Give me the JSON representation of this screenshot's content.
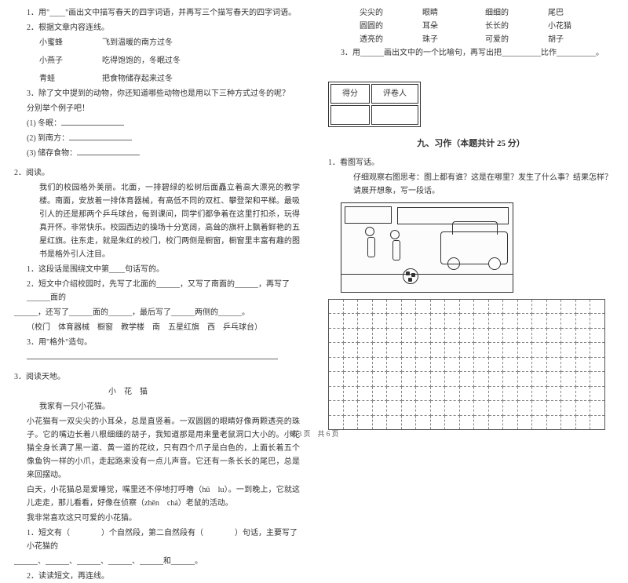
{
  "left": {
    "q1_1": "1．用\"____\"画出文中描写春天的四字词语，并再写三个描写春天的四字词语。",
    "q1_2": "2．根据文章内容连线。",
    "pairs": [
      [
        "小蜜蜂",
        "飞到温暖的南方过冬"
      ],
      [
        "小燕子",
        "吃得饱饱的，冬眠过冬"
      ],
      [
        "青蛙",
        "把食物储存起来过冬"
      ]
    ],
    "q1_3": "3．除了文中提到的动物，你还知道哪些动物也是用以下三种方式过冬的呢？",
    "q1_3a": "分别举个例子吧！",
    "sub": [
      "(1) 冬眠：",
      "(2) 到南方：",
      "(3) 储存食物："
    ],
    "q2": "2．阅读。",
    "p2_1": "我们的校园格外美丽。北面，一排碧绿的松树后面矗立着高大漂亮的教学楼。南面，安放着一排体育器械，有高低不同的双杠、攀登架和平梯。最吸引人的还是那两个乒乓球台，每到课间，同学们都争着在这里打扣杀，玩得真开怀。非常快乐。校园西边的操场十分宽阔，高耸的旗杆上飘着鲜艳的五星红旗。往东走，就是朱红的校门，校门两侧是橱窗，橱窗里丰富有趣的图书是格外引人注目。",
    "p2_q1": "1．这段话是围绕文中第____句话写的。",
    "p2_q2a": "2．短文中介绍校园时，先写了北面的______，又写了南面的______，再写了______面的",
    "p2_q2b": "______，还写了______面的______，最后写了______两侧的______。",
    "p2_opts": "（校门　体育器械　橱窗　教学楼　南　五星红旗　西　乒乓球台）",
    "p2_q3": "3．用\"格外\"造句。",
    "q3": "3．阅读天地。",
    "title3": "小　花　猫",
    "p3_0": "我家有一只小花猫。",
    "p3_1": "小花猫有一双尖尖的小耳朵，总是直竖着。一双圆圆的眼睛好像两颗透亮的珠子。它的嘴边长着八根细细的胡子，我知道那是用来量老鼠洞口大小的。小花猫全身长满了黑一道、黄一道的花纹，只有四个爪子是白色的，上面长着五个像鱼钩一样的小爪，走起路来没有一点儿声音。它还有一条长长的尾巴，总是来回摆动。",
    "p3_2": "白天，小花猫总是爱睡觉，嘴里还不停地打呼噜（hū　lu）。一到晚上，它就这儿走走，那儿看看，好像在侦察（zhēn　chá）老鼠的活动。",
    "p3_3": "我非常喜欢这只可爱的小花猫。",
    "p3_q1a": "1．短文有（　　　　）个自然段，第二自然段有（　　　　）句话，主要写了小花猫的",
    "p3_q1b": "______、______、______、______、______和______。",
    "p3_q2": "2．读读短文，再连线。"
  },
  "right": {
    "words": [
      [
        "尖尖的",
        "眼睛",
        "细细的",
        "尾巴"
      ],
      [
        "圆圆的",
        "耳朵",
        "长长的",
        "小花猫"
      ],
      [
        "透亮的",
        "珠子",
        "可爱的",
        "胡子"
      ]
    ],
    "q3": "3．用______画出文中的一个比喻句，再写出把__________比作__________。",
    "score_l": "得分",
    "score_r": "评卷人",
    "section": "九、习作（本题共计 25 分）",
    "w1": "1．看图写话。",
    "w2": "仔细观察右图思考：图上都有谁？这是在哪里？发生了什么事？结果怎样？请展开想象，写一段话。"
  },
  "footer": "第 3 页　共 6 页",
  "grid": {
    "rows": 9,
    "cols": 19
  }
}
